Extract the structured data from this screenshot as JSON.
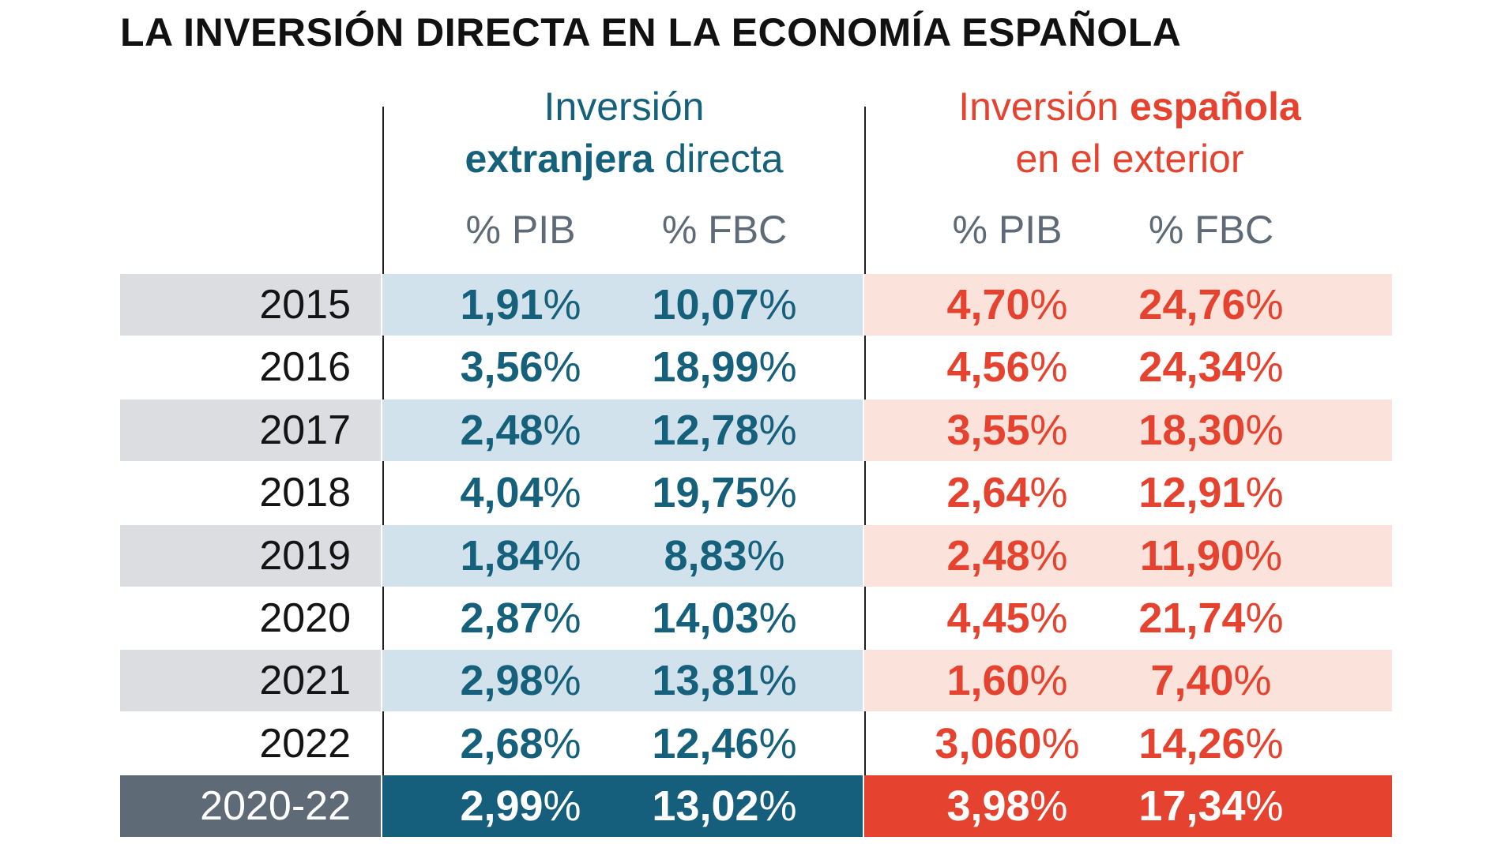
{
  "title": "LA INVERSIÓN DIRECTA EN LA ECONOMÍA ESPAÑOLA",
  "colors": {
    "foreign": "#15607b",
    "spanish": "#e5432f",
    "year_shade": "#dcdde1",
    "foreign_shade": "#d2e2ec",
    "spanish_shade": "#fbe2da",
    "total_year": "#5e6b76"
  },
  "headers": {
    "foreign": {
      "line1": "Inversión",
      "line2_bold": "extranjera",
      "line2_rest": " directa"
    },
    "spanish": {
      "line1_regular": "Inversión ",
      "line1_bold": "española",
      "line2": "en el exterior"
    },
    "sub": {
      "pib": "% PIB",
      "fbc": "% FBC"
    }
  },
  "chart_data": {
    "type": "table",
    "title": "LA INVERSIÓN DIRECTA EN LA ECONOMÍA ESPAÑOLA",
    "columns": [
      "Inversión extranjera directa % PIB",
      "Inversión extranjera directa % FBC",
      "Inversión española en el exterior % PIB",
      "Inversión española en el exterior % FBC"
    ],
    "rows": [
      {
        "year": "2015",
        "fdi_pib": "1,91",
        "fdi_fbc": "10,07",
        "ext_pib": "4,70",
        "ext_fbc": "24,76",
        "shaded": true
      },
      {
        "year": "2016",
        "fdi_pib": "3,56",
        "fdi_fbc": "18,99",
        "ext_pib": "4,56",
        "ext_fbc": "24,34",
        "shaded": false
      },
      {
        "year": "2017",
        "fdi_pib": "2,48",
        "fdi_fbc": "12,78",
        "ext_pib": "3,55",
        "ext_fbc": "18,30",
        "shaded": true
      },
      {
        "year": "2018",
        "fdi_pib": "4,04",
        "fdi_fbc": "19,75",
        "ext_pib": "2,64",
        "ext_fbc": "12,91",
        "shaded": false
      },
      {
        "year": "2019",
        "fdi_pib": "1,84",
        "fdi_fbc": "8,83",
        "ext_pib": "2,48",
        "ext_fbc": "11,90",
        "shaded": true
      },
      {
        "year": "2020",
        "fdi_pib": "2,87",
        "fdi_fbc": "14,03",
        "ext_pib": "4,45",
        "ext_fbc": "21,74",
        "shaded": false
      },
      {
        "year": "2021",
        "fdi_pib": "2,98",
        "fdi_fbc": "13,81",
        "ext_pib": "1,60",
        "ext_fbc": "7,40",
        "shaded": true
      },
      {
        "year": "2022",
        "fdi_pib": "2,68",
        "fdi_fbc": "12,46",
        "ext_pib": "3,060",
        "ext_fbc": "14,26",
        "shaded": false
      },
      {
        "year": "2020-22",
        "fdi_pib": "2,99",
        "fdi_fbc": "13,02",
        "ext_pib": "3,98",
        "ext_fbc": "17,34",
        "total": true
      }
    ]
  }
}
